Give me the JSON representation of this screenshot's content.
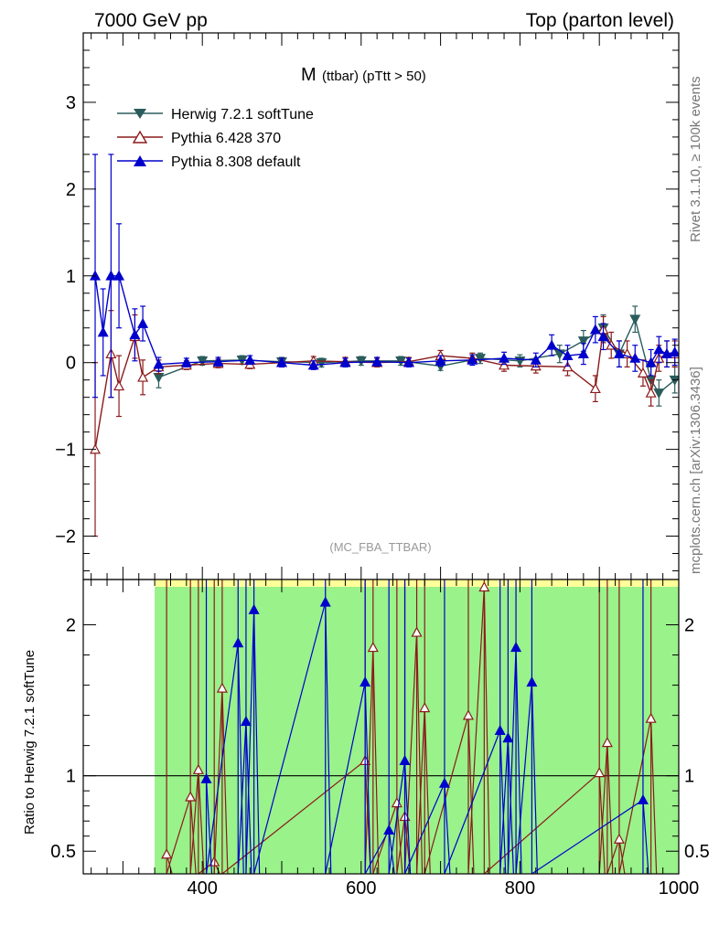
{
  "header": {
    "left": "7000 GeV pp",
    "right": "Top (parton level)"
  },
  "side_labels": {
    "rivet": "Rivet 3.1.10, ≥ 100k events",
    "mcplots": "mcplots.cern.ch [arXiv:1306.3436]"
  },
  "analysis_tag": "(MC_FBA_TTBAR)",
  "colors": {
    "herwig": "#2a5c5c",
    "pythia6": "#8b1a1a",
    "pythia8": "#0000cc",
    "band_inner": "#99f28a",
    "band_outer": "#ffff99",
    "frame": "#000000"
  },
  "chart_data": [
    {
      "type": "line",
      "title_main": "M",
      "title_sub": "(ttbar) (pTtt > 50)",
      "xlim": [
        250,
        1000
      ],
      "ylim": [
        -2.5,
        3.8
      ],
      "y_ticks": [
        -2,
        -1,
        0,
        1,
        2,
        3
      ],
      "y_tick_labels": [
        "−2",
        "−1",
        "0",
        "1",
        "2",
        "3"
      ],
      "legend_position": "top-left",
      "series": [
        {
          "name": "Herwig 7.2.1 softTune",
          "marker": "triangle-down-filled",
          "x": [
            345,
            400,
            450,
            500,
            550,
            600,
            650,
            700,
            750,
            800,
            850,
            880,
            905,
            925,
            945,
            965,
            975,
            995
          ],
          "y": [
            -0.17,
            0.02,
            0.03,
            0.01,
            0.0,
            0.02,
            0.02,
            -0.04,
            0.05,
            0.02,
            0.1,
            0.25,
            0.4,
            0.1,
            0.5,
            -0.2,
            -0.35,
            -0.2
          ],
          "err": [
            0.12,
            0.05,
            0.05,
            0.05,
            0.05,
            0.05,
            0.05,
            0.05,
            0.06,
            0.07,
            0.1,
            0.12,
            0.15,
            0.15,
            0.15,
            0.15,
            0.15,
            0.15
          ]
        },
        {
          "name": "Pythia 6.428 370",
          "marker": "triangle-up-open",
          "x": [
            265,
            285,
            295,
            315,
            325,
            345,
            380,
            420,
            460,
            500,
            540,
            580,
            620,
            660,
            700,
            740,
            780,
            820,
            860,
            895,
            905,
            915,
            935,
            955,
            965,
            975,
            985,
            995
          ],
          "y": [
            -1.0,
            0.1,
            -0.27,
            0.3,
            -0.17,
            -0.05,
            -0.03,
            -0.01,
            -0.02,
            0.0,
            0.02,
            0.01,
            0.0,
            0.01,
            0.08,
            0.05,
            -0.03,
            -0.04,
            -0.05,
            -0.3,
            0.38,
            0.2,
            0.1,
            -0.12,
            -0.35,
            0.05,
            0.1,
            0.1
          ],
          "err": [
            1.0,
            0.5,
            0.35,
            0.25,
            0.2,
            0.08,
            0.05,
            0.05,
            0.05,
            0.05,
            0.05,
            0.05,
            0.05,
            0.05,
            0.06,
            0.06,
            0.07,
            0.08,
            0.1,
            0.15,
            0.15,
            0.15,
            0.15,
            0.15,
            0.15,
            0.15,
            0.15,
            0.15
          ]
        },
        {
          "name": "Pythia 8.308 default",
          "marker": "triangle-up-filled",
          "x": [
            265,
            275,
            285,
            295,
            315,
            325,
            345,
            380,
            420,
            460,
            500,
            540,
            580,
            620,
            660,
            700,
            740,
            780,
            820,
            840,
            860,
            880,
            895,
            905,
            925,
            945,
            965,
            975,
            985,
            995
          ],
          "y": [
            1.0,
            0.35,
            1.0,
            1.0,
            0.32,
            0.45,
            -0.02,
            0.0,
            0.01,
            0.03,
            0.0,
            -0.03,
            0.0,
            0.01,
            0.0,
            0.02,
            0.03,
            0.05,
            0.03,
            0.2,
            0.08,
            0.1,
            0.38,
            0.3,
            0.1,
            0.05,
            0.0,
            0.15,
            0.1,
            0.12
          ],
          "err": [
            1.4,
            0.5,
            1.4,
            0.6,
            0.3,
            0.2,
            0.08,
            0.05,
            0.05,
            0.05,
            0.05,
            0.05,
            0.05,
            0.05,
            0.05,
            0.06,
            0.06,
            0.07,
            0.08,
            0.12,
            0.12,
            0.12,
            0.15,
            0.15,
            0.15,
            0.15,
            0.15,
            0.15,
            0.15,
            0.15
          ]
        }
      ]
    },
    {
      "type": "line",
      "ylabel": "Ratio to Herwig 7.2.1 softTune",
      "xlim": [
        250,
        1000
      ],
      "ylim": [
        0.35,
        2.3
      ],
      "x_ticks": [
        400,
        600,
        800,
        1000
      ],
      "x_tick_labels": [
        "400",
        "600",
        "800",
        "1000"
      ],
      "y_ticks": [
        0.5,
        1,
        2
      ],
      "y_tick_labels": [
        "0.5",
        "1",
        "2"
      ],
      "reference_line": 1,
      "band_x_range": [
        340,
        1000
      ],
      "series": [
        {
          "name": "Pythia 6.428 370",
          "x": [
            355,
            385,
            395,
            415,
            425,
            605,
            615,
            645,
            655,
            670,
            680,
            735,
            755,
            900,
            910,
            925,
            965
          ],
          "y": [
            0.48,
            0.86,
            1.04,
            0.43,
            1.58,
            1.1,
            1.85,
            0.82,
            0.73,
            1.95,
            1.45,
            1.4,
            2.25,
            1.02,
            1.22,
            0.58,
            1.38
          ]
        },
        {
          "name": "Pythia 8.308 default",
          "x": [
            405,
            445,
            455,
            465,
            555,
            605,
            635,
            655,
            705,
            775,
            785,
            795,
            815,
            955
          ],
          "y": [
            0.98,
            1.88,
            1.36,
            2.1,
            2.15,
            1.62,
            0.64,
            1.1,
            0.95,
            1.3,
            1.25,
            1.85,
            1.62,
            0.84
          ]
        }
      ]
    }
  ]
}
